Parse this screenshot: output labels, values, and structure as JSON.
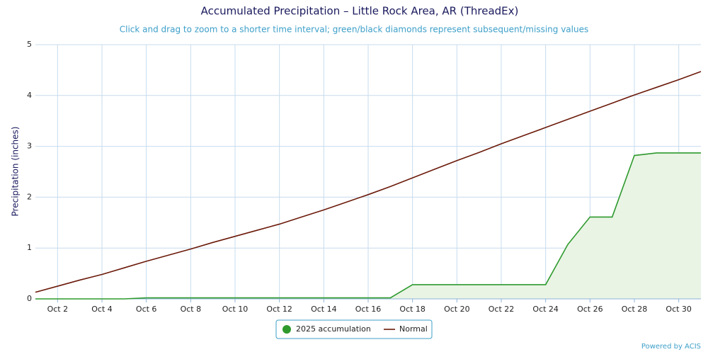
{
  "chart_data": {
    "type": "line",
    "title": "Accumulated Precipitation – Little Rock Area, AR (ThreadEx)",
    "subtitle": "Click and drag to zoom to a shorter time interval; green/black diamonds represent subsequent/missing values",
    "ylabel": "Precipitation (inches)",
    "credit": "Powered by ACIS",
    "categories": [
      null,
      "Oct 2",
      null,
      "Oct 4",
      null,
      "Oct 6",
      null,
      "Oct 8",
      null,
      "Oct 10",
      null,
      "Oct 12",
      null,
      "Oct 14",
      null,
      "Oct 16",
      null,
      "Oct 18",
      null,
      "Oct 20",
      null,
      "Oct 22",
      null,
      "Oct 24",
      null,
      "Oct 26",
      null,
      "Oct 28",
      null,
      "Oct 30",
      null
    ],
    "series": [
      {
        "name": "2025 accumulation",
        "color": "#2e9a2e",
        "fill": "#e9f4e4",
        "values": [
          0,
          0,
          0,
          0,
          0,
          0.02,
          0.02,
          0.02,
          0.02,
          0.02,
          0.02,
          0.02,
          0.02,
          0.02,
          0.02,
          0.02,
          0.02,
          0.28,
          0.28,
          0.28,
          0.28,
          0.28,
          0.28,
          0.28,
          1.07,
          1.61,
          1.61,
          2.82,
          2.87,
          2.87,
          2.87
        ]
      },
      {
        "name": "Normal",
        "color": "#6b1a0a",
        "values": [
          0.13,
          0.25,
          0.37,
          0.48,
          0.61,
          0.74,
          0.86,
          0.98,
          1.11,
          1.23,
          1.35,
          1.47,
          1.61,
          1.75,
          1.9,
          2.05,
          2.21,
          2.38,
          2.55,
          2.72,
          2.88,
          3.05,
          3.21,
          3.37,
          3.53,
          3.69,
          3.85,
          4.01,
          4.16,
          4.31,
          4.47
        ]
      }
    ],
    "ylim": [
      0,
      5
    ],
    "yticks": [
      0,
      1,
      2,
      3,
      4,
      5
    ],
    "grid": true,
    "legend": "bottom"
  }
}
